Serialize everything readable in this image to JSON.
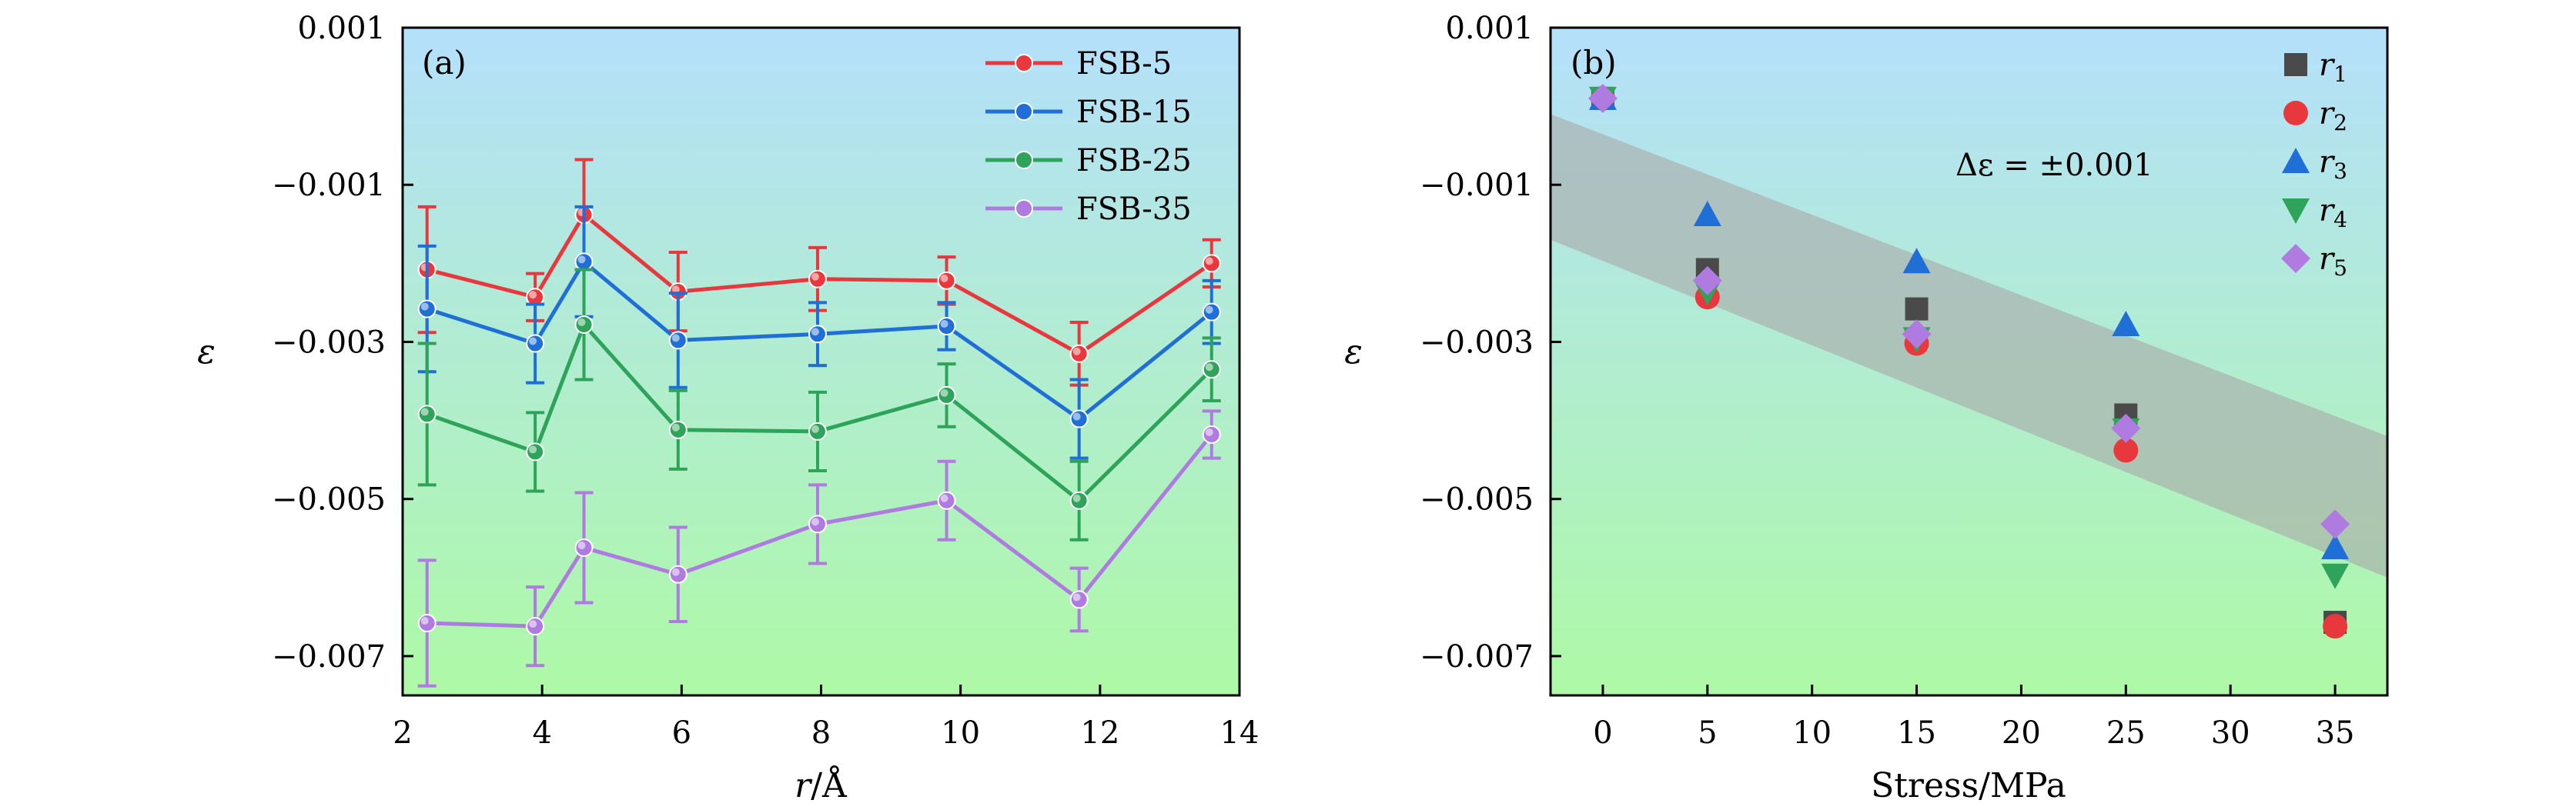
{
  "chart_data": [
    {
      "type": "line",
      "panel_label": "(a)",
      "xlabel": "r/Å",
      "ylabel": "ε",
      "xlim": [
        2,
        14
      ],
      "ylim": [
        -0.0075,
        0.001
      ],
      "x_ticks": [
        2,
        4,
        6,
        8,
        10,
        12,
        14
      ],
      "x_tick_labels": [
        "2",
        "4",
        "6",
        "8",
        "10",
        "12",
        "14"
      ],
      "y_ticks": [
        0.001,
        -0.001,
        -0.003,
        -0.005,
        -0.007
      ],
      "y_tick_labels": [
        "0.001",
        "−0.001",
        "−0.003",
        "−0.005",
        "−0.007"
      ],
      "legend_position": "top-right",
      "x": [
        2.35,
        3.9,
        4.6,
        5.95,
        7.95,
        9.8,
        11.7,
        13.6
      ],
      "series": [
        {
          "name": "FSB-5",
          "color": "#e8383d",
          "values": [
            -0.00208,
            -0.00243,
            -0.00138,
            -0.00236,
            -0.0022,
            -0.00222,
            -0.00315,
            -0.002
          ],
          "errors": [
            0.0008,
            0.0003,
            0.0007,
            0.0005,
            0.0004,
            0.0003,
            0.0004,
            0.0003
          ]
        },
        {
          "name": "FSB-15",
          "color": "#1f6fd6",
          "values": [
            -0.00258,
            -0.00302,
            -0.00198,
            -0.00298,
            -0.0029,
            -0.0028,
            -0.00398,
            -0.00262
          ],
          "errors": [
            0.0008,
            0.0005,
            0.0007,
            0.0006,
            0.0004,
            0.0003,
            0.0005,
            0.0004
          ]
        },
        {
          "name": "FSB-25",
          "color": "#2ea35a",
          "values": [
            -0.00392,
            -0.0044,
            -0.00278,
            -0.00412,
            -0.00414,
            -0.00368,
            -0.00502,
            -0.00335
          ],
          "errors": [
            0.0009,
            0.0005,
            0.0007,
            0.0005,
            0.0005,
            0.0004,
            0.0005,
            0.0004
          ]
        },
        {
          "name": "FSB-35",
          "color": "#b07be0",
          "values": [
            -0.00658,
            -0.00662,
            -0.00562,
            -0.00596,
            -0.00532,
            -0.00502,
            -0.00628,
            -0.00418
          ],
          "errors": [
            0.0008,
            0.0005,
            0.0007,
            0.0006,
            0.0005,
            0.0005,
            0.0004,
            0.0003
          ]
        }
      ]
    },
    {
      "type": "scatter",
      "panel_label": "(b)",
      "xlabel": "Stress/MPa",
      "ylabel": "ε",
      "xlim": [
        -2.5,
        37.5
      ],
      "ylim": [
        -0.0075,
        0.001
      ],
      "x_ticks": [
        0,
        5,
        10,
        15,
        20,
        25,
        30,
        35
      ],
      "x_tick_labels": [
        "0",
        "5",
        "10",
        "15",
        "20",
        "25",
        "30",
        "35"
      ],
      "y_ticks": [
        0.001,
        -0.001,
        -0.003,
        -0.005,
        -0.007
      ],
      "y_tick_labels": [
        "0.001",
        "−0.001",
        "−0.003",
        "−0.005",
        "−0.007"
      ],
      "legend_position": "top-right",
      "annotation": "Δε = ±0.001",
      "band": {
        "label": "Δε = ±0.001",
        "x": [
          -2.5,
          37.5
        ],
        "upper": [
          -0.0001,
          -0.0042
        ],
        "lower": [
          -0.0017,
          -0.006
        ],
        "color": "#a9a9a9"
      },
      "x": [
        0,
        5,
        15,
        25,
        35
      ],
      "series": [
        {
          "name": "r",
          "subscript": "1",
          "marker": "square",
          "color": "#4a4a4a",
          "values": [
            0.0001,
            -0.00208,
            -0.00258,
            -0.00393,
            -0.00657
          ]
        },
        {
          "name": "r",
          "subscript": "2",
          "marker": "circle",
          "color": "#e8383d",
          "values": [
            0.0001,
            -0.00243,
            -0.00302,
            -0.00438,
            -0.00662
          ]
        },
        {
          "name": "r",
          "subscript": "3",
          "marker": "triangle-up",
          "color": "#1f6fd6",
          "values": [
            0.0001,
            -0.00138,
            -0.00198,
            -0.00278,
            -0.00562
          ]
        },
        {
          "name": "r",
          "subscript": "4",
          "marker": "triangle-down",
          "color": "#2ea35a",
          "values": [
            0.0001,
            -0.00236,
            -0.00296,
            -0.00412,
            -0.00597
          ]
        },
        {
          "name": "r",
          "subscript": "5",
          "marker": "diamond",
          "color": "#b07be0",
          "values": [
            0.0001,
            -0.00222,
            -0.0029,
            -0.0041,
            -0.00532
          ]
        }
      ]
    }
  ]
}
